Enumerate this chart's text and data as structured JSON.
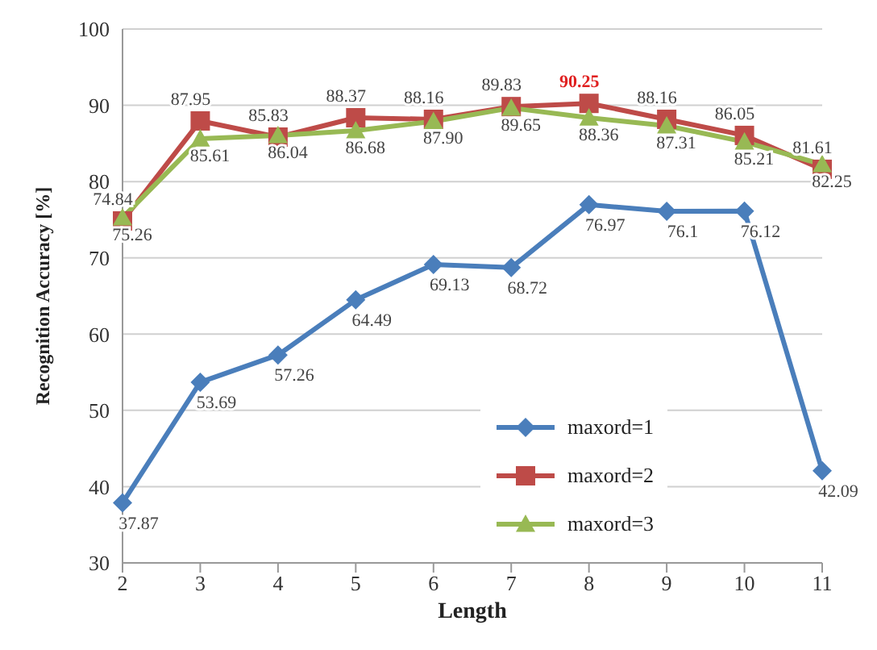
{
  "chart_data": {
    "type": "line",
    "xlabel": "Length",
    "ylabel": "Recognition Accuracy [%]",
    "categories": [
      "2",
      "3",
      "4",
      "5",
      "6",
      "7",
      "8",
      "9",
      "10",
      "11"
    ],
    "series": [
      {
        "name": "maxord=1",
        "color": "#4a7ebb",
        "marker": "diamond",
        "values": [
          37.87,
          53.69,
          57.26,
          64.49,
          69.13,
          68.72,
          76.97,
          76.1,
          76.12,
          42.09
        ],
        "value_labels": [
          "37.87",
          "53.69",
          "57.26",
          "64.49",
          "69.13",
          "68.72",
          "76.97",
          "76.1",
          "76.12",
          "42.09"
        ]
      },
      {
        "name": "maxord=2",
        "color": "#be4b48",
        "marker": "square",
        "values": [
          74.84,
          87.95,
          85.83,
          88.37,
          88.16,
          89.83,
          90.25,
          88.16,
          86.05,
          81.61
        ],
        "value_labels": [
          "74.84",
          "87.95",
          "85.83",
          "88.37",
          "88.16",
          "89.83",
          "90.25",
          "88.16",
          "86.05",
          "81.61"
        ]
      },
      {
        "name": "maxord=3",
        "color": "#98b954",
        "marker": "triangle",
        "values": [
          75.26,
          85.61,
          86.04,
          86.68,
          87.9,
          89.65,
          88.36,
          87.31,
          85.21,
          82.25
        ],
        "value_labels": [
          "75.26",
          "85.61",
          "86.04",
          "86.68",
          "87.90",
          "89.65",
          "88.36",
          "87.31",
          "85.21",
          "82.25"
        ]
      }
    ],
    "ylim": [
      30,
      100
    ],
    "yticks": [
      30,
      40,
      50,
      60,
      70,
      80,
      90,
      100
    ],
    "grid": "y",
    "legend": "bottom right",
    "line_style": "solid"
  }
}
